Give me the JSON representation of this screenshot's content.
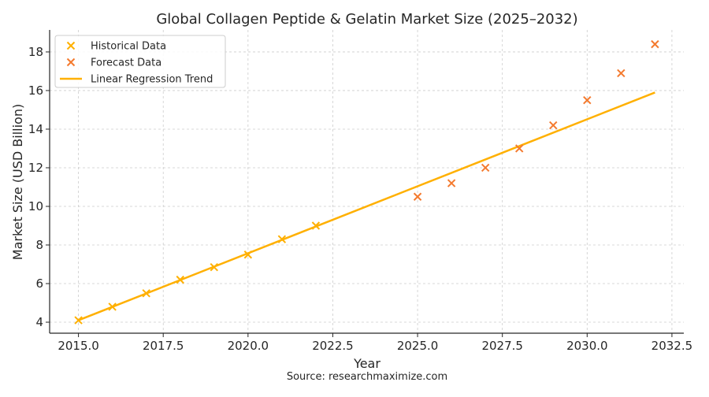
{
  "chart_data": {
    "type": "scatter",
    "title": "Global Collagen Peptide & Gelatin Market Size (2025–2032)",
    "xlabel": "Year",
    "ylabel": "Market Size (USD Billion)",
    "source": "Source: researchmaximize.com",
    "xlim": [
      2014.15,
      2032.85
    ],
    "ylim": [
      3.43,
      19.14
    ],
    "xticks": [
      2015.0,
      2017.5,
      2020.0,
      2022.5,
      2025.0,
      2027.5,
      2030.0,
      2032.5
    ],
    "xtick_labels": [
      "2015.0",
      "2017.5",
      "2020.0",
      "2022.5",
      "2025.0",
      "2027.5",
      "2030.0",
      "2032.5"
    ],
    "yticks": [
      4,
      6,
      8,
      10,
      12,
      14,
      16,
      18
    ],
    "ytick_labels": [
      "4",
      "6",
      "8",
      "10",
      "12",
      "14",
      "16",
      "18"
    ],
    "grid": true,
    "legend_position": "top-left",
    "series": [
      {
        "name": "Historical Data",
        "kind": "scatter",
        "marker": "x",
        "color": "#FFB000",
        "x": [
          2015,
          2016,
          2017,
          2018,
          2019,
          2020,
          2021,
          2022
        ],
        "y": [
          4.1,
          4.8,
          5.5,
          6.2,
          6.85,
          7.5,
          8.3,
          9.0
        ]
      },
      {
        "name": "Forecast Data",
        "kind": "scatter",
        "marker": "x",
        "color": "#F47A2E",
        "x": [
          2025,
          2026,
          2027,
          2028,
          2029,
          2030,
          2031,
          2032
        ],
        "y": [
          10.5,
          11.2,
          12.0,
          13.0,
          14.2,
          15.5,
          16.9,
          18.4
        ]
      },
      {
        "name": "Linear Regression Trend",
        "kind": "line",
        "color": "#FFB000",
        "x": [
          2015,
          2032
        ],
        "y": [
          4.1,
          15.9
        ]
      }
    ]
  }
}
